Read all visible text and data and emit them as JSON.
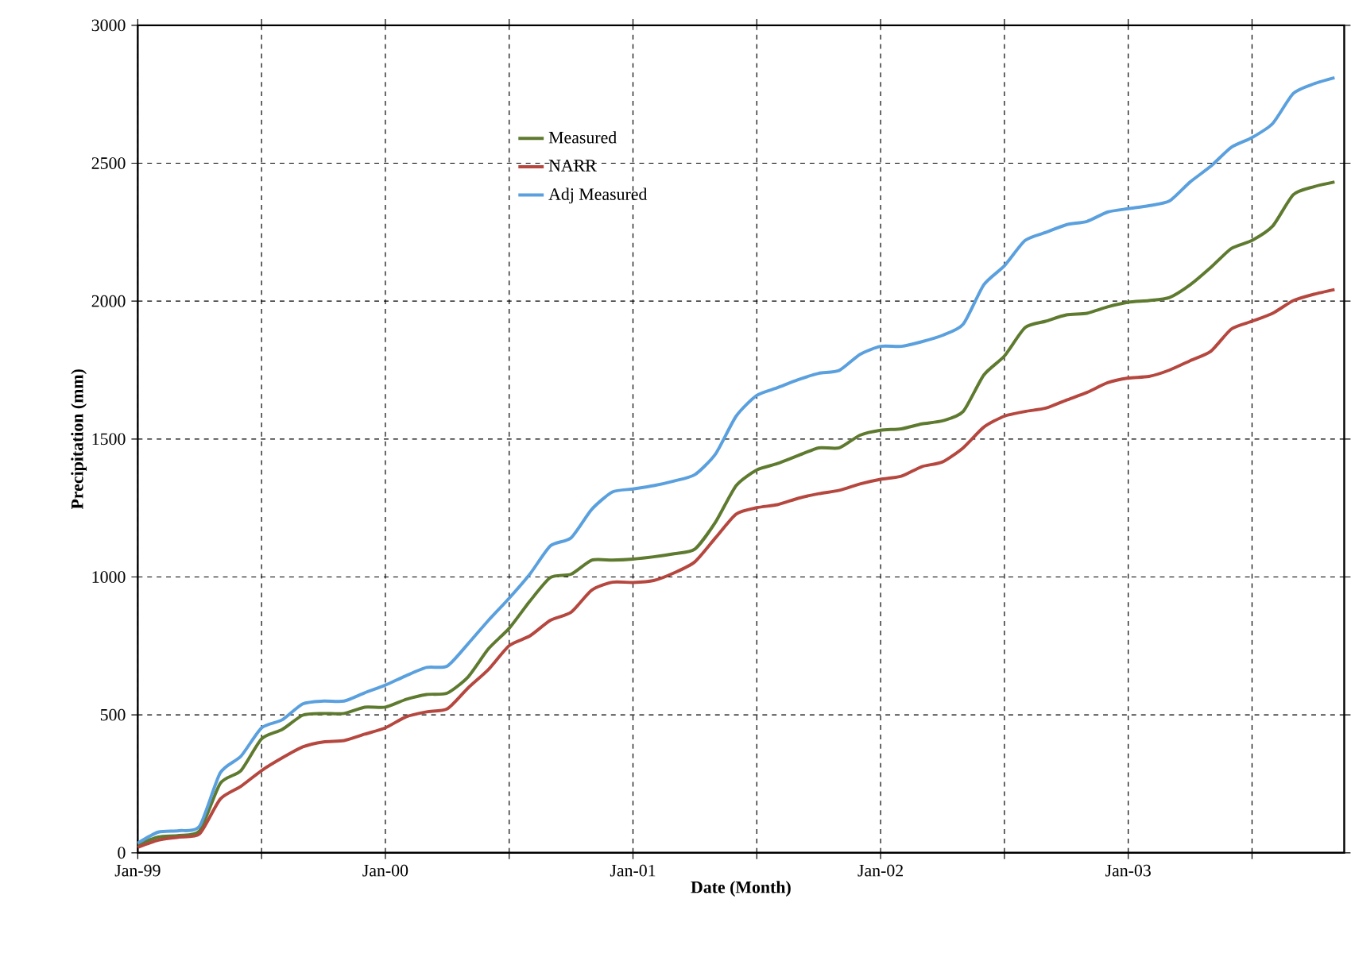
{
  "chart_data": {
    "type": "line",
    "xlabel": "Date (Month)",
    "ylabel": "Precipitation (mm)",
    "x": [
      "1999-01",
      "1999-02",
      "1999-03",
      "1999-04",
      "1999-05",
      "1999-06",
      "1999-07",
      "1999-08",
      "1999-09",
      "1999-10",
      "1999-11",
      "1999-12",
      "2000-01",
      "2000-02",
      "2000-03",
      "2000-04",
      "2000-05",
      "2000-06",
      "2000-07",
      "2000-08",
      "2000-09",
      "2000-10",
      "2000-11",
      "2000-12",
      "2001-01",
      "2001-02",
      "2001-03",
      "2001-04",
      "2001-05",
      "2001-06",
      "2001-07",
      "2001-08",
      "2001-09",
      "2001-10",
      "2001-11",
      "2001-12",
      "2002-01",
      "2002-02",
      "2002-03",
      "2002-04",
      "2002-05",
      "2002-06",
      "2002-07",
      "2002-08",
      "2002-09",
      "2002-10",
      "2002-11",
      "2002-12",
      "2003-01",
      "2003-02",
      "2003-03",
      "2003-04",
      "2003-05",
      "2003-06",
      "2003-07",
      "2003-08",
      "2003-09",
      "2003-10",
      "2003-11"
    ],
    "series": [
      {
        "name": "Measured",
        "color": "#5e7a2f",
        "values": [
          30,
          57,
          63,
          80,
          252,
          298,
          413,
          447,
          499,
          505,
          505,
          528,
          528,
          556,
          574,
          579,
          637,
          740,
          814,
          912,
          998,
          1010,
          1061,
          1061,
          1065,
          1073,
          1084,
          1101,
          1199,
          1331,
          1388,
          1411,
          1440,
          1468,
          1468,
          1514,
          1532,
          1537,
          1555,
          1566,
          1600,
          1732,
          1801,
          1904,
          1927,
          1950,
          1956,
          1979,
          1996,
          2002,
          2013,
          2059,
          2122,
          2191,
          2220,
          2272,
          2386,
          2415,
          2432
        ]
      },
      {
        "name": "NARR",
        "color": "#b5473f",
        "values": [
          20,
          46,
          57,
          69,
          195,
          241,
          298,
          344,
          384,
          402,
          407,
          430,
          453,
          493,
          511,
          522,
          597,
          665,
          751,
          786,
          843,
          872,
          952,
          981,
          980,
          987,
          1015,
          1055,
          1142,
          1228,
          1251,
          1262,
          1285,
          1302,
          1314,
          1337,
          1354,
          1365,
          1400,
          1417,
          1468,
          1543,
          1583,
          1600,
          1612,
          1641,
          1669,
          1704,
          1721,
          1727,
          1750,
          1784,
          1818,
          1899,
          1927,
          1956,
          2002,
          2025,
          2042
        ]
      },
      {
        "name": "Adj Measured",
        "color": "#5aa0de",
        "values": [
          35,
          75,
          80,
          97,
          290,
          350,
          453,
          482,
          540,
          550,
          550,
          580,
          608,
          642,
          672,
          677,
          757,
          843,
          923,
          1010,
          1113,
          1142,
          1245,
          1308,
          1319,
          1331,
          1348,
          1371,
          1446,
          1583,
          1658,
          1686,
          1715,
          1738,
          1749,
          1807,
          1836,
          1836,
          1853,
          1876,
          1916,
          2059,
          2128,
          2220,
          2249,
          2277,
          2289,
          2323,
          2335,
          2346,
          2363,
          2432,
          2489,
          2558,
          2593,
          2644,
          2753,
          2788,
          2810
        ]
      }
    ],
    "xlim": [
      "1999-01",
      "2003-11-15"
    ],
    "xticks": [
      {
        "value": "1999-01",
        "label": "Jan-99"
      },
      {
        "value": "1999-07",
        "label": null
      },
      {
        "value": "2000-01",
        "label": "Jan-00"
      },
      {
        "value": "2000-07",
        "label": null
      },
      {
        "value": "2001-01",
        "label": "Jan-01"
      },
      {
        "value": "2001-07",
        "label": null
      },
      {
        "value": "2002-01",
        "label": "Jan-02"
      },
      {
        "value": "2002-07",
        "label": null
      },
      {
        "value": "2003-01",
        "label": "Jan-03"
      },
      {
        "value": "2003-07",
        "label": null
      }
    ],
    "ylim": [
      0,
      3000
    ],
    "yticks": [
      0,
      500,
      1000,
      1500,
      2000,
      2500,
      3000
    ],
    "grid": true,
    "legend": "top center",
    "line_style": "solid",
    "marker": "none"
  }
}
